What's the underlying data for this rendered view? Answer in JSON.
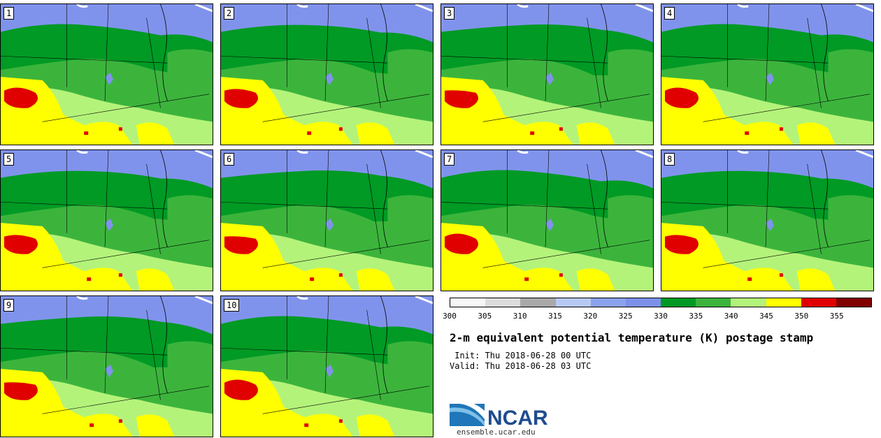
{
  "panels": [
    {
      "label": "1"
    },
    {
      "label": "2"
    },
    {
      "label": "3"
    },
    {
      "label": "4"
    },
    {
      "label": "5"
    },
    {
      "label": "6"
    },
    {
      "label": "7"
    },
    {
      "label": "8"
    },
    {
      "label": "9"
    },
    {
      "label": "10"
    }
  ],
  "legend": {
    "colors": [
      "#f7f7f7",
      "#dcdcdc",
      "#a9a9a9",
      "#b8c8f5",
      "#8aa2ee",
      "#7c90ea",
      "#009a24",
      "#3cb43c",
      "#b4f37a",
      "#ffff00",
      "#e00000",
      "#800000"
    ],
    "ticks": [
      "300",
      "305",
      "310",
      "315",
      "320",
      "325",
      "330",
      "335",
      "340",
      "345",
      "350",
      "355"
    ]
  },
  "title": "2-m equivalent potential temperature (K) postage stamp",
  "init": " Init: Thu 2018-06-28 00 UTC",
  "valid": "Valid: Thu 2018-06-28 03 UTC",
  "logo_text": "NCAR",
  "site": "ensemble.ucar.edu",
  "colors": {
    "purple": "#8093ec",
    "darkgreen": "#009a24",
    "green": "#3cb43c",
    "lightgreen": "#b4f37a",
    "yellow": "#ffff00",
    "red": "#e00000"
  }
}
